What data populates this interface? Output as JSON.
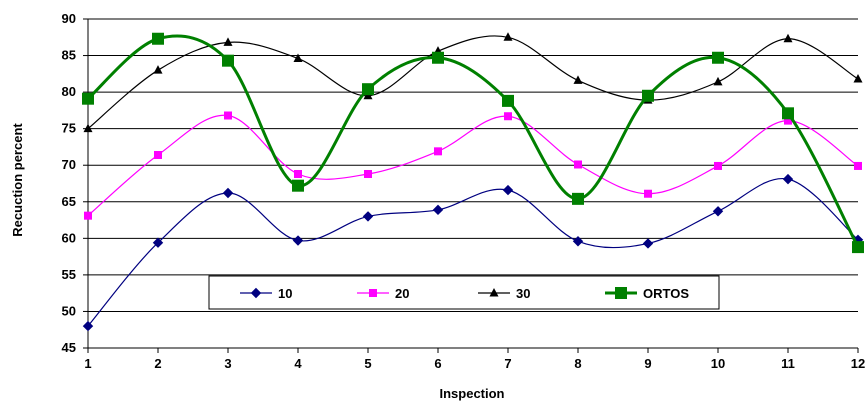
{
  "chart_data": {
    "type": "line",
    "title": "",
    "xlabel": "Inspection",
    "ylabel": "Recuction percent",
    "x": [
      1,
      2,
      3,
      4,
      5,
      6,
      7,
      8,
      9,
      10,
      11,
      12
    ],
    "ylim": [
      45,
      90
    ],
    "yticks": [
      45,
      50,
      55,
      60,
      65,
      70,
      75,
      80,
      85,
      90
    ],
    "grid": "horizontal",
    "smooth": true,
    "legend_position": "bottom-center",
    "series": [
      {
        "name": "10",
        "color": "#000080",
        "marker": "diamond",
        "values": [
          48.0,
          59.4,
          66.2,
          59.7,
          63.0,
          63.9,
          66.6,
          59.6,
          59.3,
          63.7,
          68.1,
          59.8
        ]
      },
      {
        "name": "20",
        "color": "#ff00ff",
        "marker": "square",
        "values": [
          63.1,
          71.4,
          76.8,
          68.8,
          68.8,
          71.9,
          76.7,
          70.1,
          66.1,
          69.9,
          76.1,
          69.9
        ]
      },
      {
        "name": "30",
        "color": "#000000",
        "marker": "triangle",
        "values": [
          75.0,
          83.0,
          86.8,
          84.6,
          79.5,
          85.6,
          87.5,
          81.6,
          78.9,
          81.4,
          87.3,
          81.8
        ]
      },
      {
        "name": "ORTOS",
        "color": "#008000",
        "marker": "square-large",
        "values": [
          79.1,
          87.3,
          84.3,
          67.2,
          80.4,
          84.7,
          78.8,
          65.4,
          79.5,
          84.7,
          77.1,
          58.8
        ]
      }
    ]
  }
}
